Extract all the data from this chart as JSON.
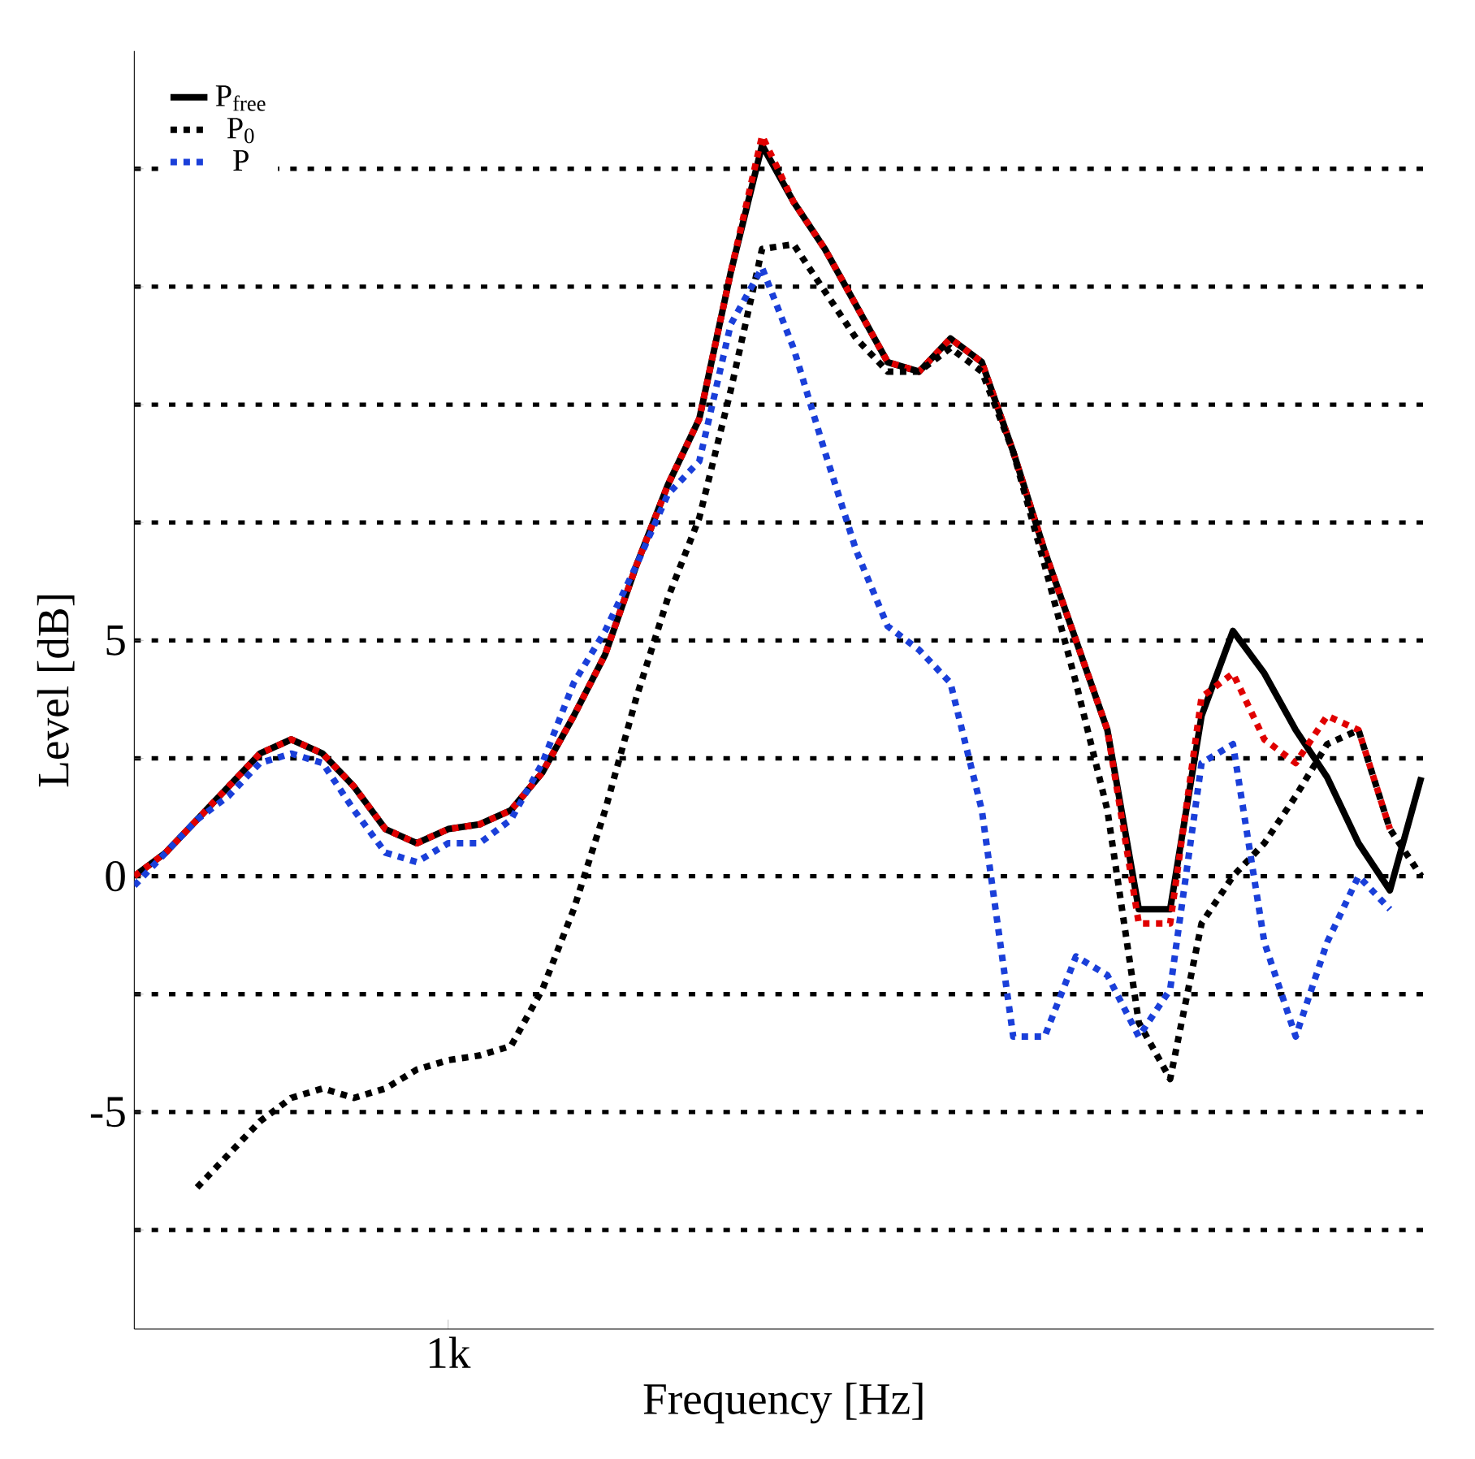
{
  "chart_data": {
    "type": "line",
    "xlabel": "Frequency [Hz]",
    "ylabel": "Level [dB]",
    "categories": [
      null,
      null,
      null,
      null,
      null,
      null,
      null,
      null,
      null,
      null,
      "1k",
      null,
      null,
      null,
      null,
      null,
      null,
      null,
      null,
      null,
      null,
      null,
      null,
      null,
      null,
      null,
      null,
      null,
      null,
      null,
      null,
      null,
      null,
      null,
      null,
      null,
      null,
      null,
      null,
      null,
      null,
      null
    ],
    "ylim": [
      -9.6,
      17.5
    ],
    "yticks": [
      {
        "value": -7.5,
        "label": null
      },
      -5,
      {
        "value": -2.5,
        "label": null
      },
      0,
      {
        "value": 2.5,
        "label": null
      },
      5,
      {
        "value": 7.5,
        "label": null
      },
      {
        "value": 10,
        "label": null
      },
      {
        "value": 12.5,
        "label": null
      },
      {
        "value": 15,
        "label": null
      }
    ],
    "grid": "y",
    "legend": "top left",
    "series": [
      {
        "name": "P$_{free}$",
        "color": "#000000",
        "line_style": "solid",
        "values": [
          0,
          0.5,
          1.2,
          1.9,
          2.6,
          2.9,
          2.6,
          1.9,
          1.0,
          0.7,
          1.0,
          1.1,
          1.4,
          2.2,
          3.4,
          4.7,
          6.6,
          8.3,
          9.7,
          12.8,
          15.5,
          14.3,
          13.3,
          12.1,
          10.9,
          10.7,
          11.4,
          10.9,
          9.0,
          6.9,
          5.0,
          3.1,
          -0.7,
          -0.7,
          3.4,
          5.2,
          4.3,
          3.1,
          2.1,
          0.7,
          -0.3,
          2.1
        ]
      },
      {
        "color": "#e00000",
        "line_style": "dashed",
        "values": [
          0,
          0.5,
          1.2,
          1.9,
          2.6,
          2.9,
          2.6,
          1.9,
          1.0,
          0.7,
          1.0,
          1.1,
          1.4,
          2.2,
          3.4,
          4.7,
          6.6,
          8.3,
          9.7,
          12.8,
          15.7,
          14.3,
          13.3,
          12.1,
          10.9,
          10.7,
          11.4,
          10.9,
          9.0,
          6.9,
          5.0,
          3.1,
          -1.0,
          -1.0,
          3.8,
          4.3,
          2.9,
          2.4,
          3.4,
          3.1,
          1.0,
          null
        ]
      },
      {
        "name": "P$_{0}$",
        "color": "#000000",
        "line_style": "dashed",
        "values": [
          null,
          null,
          -6.6,
          -5.9,
          -5.2,
          -4.7,
          -4.5,
          -4.7,
          -4.5,
          -4.1,
          -3.9,
          -3.8,
          -3.6,
          -2.4,
          -0.7,
          1.4,
          3.8,
          5.9,
          7.6,
          10.3,
          13.3,
          13.4,
          12.4,
          11.4,
          10.7,
          10.7,
          11.2,
          10.7,
          9.0,
          6.6,
          4.1,
          1.4,
          -3.1,
          -4.3,
          -1.0,
          0,
          0.7,
          1.7,
          2.8,
          3.1,
          1.0,
          0
        ]
      },
      {
        "name": "P",
        "color": "#1a3fd9",
        "line_style": "dashed",
        "values": [
          -0.2,
          0.5,
          1.2,
          1.7,
          2.4,
          2.6,
          2.4,
          1.4,
          0.5,
          0.3,
          0.7,
          0.7,
          1.2,
          2.4,
          4.1,
          5.2,
          6.6,
          8.1,
          8.8,
          11.7,
          12.9,
          11.2,
          9.0,
          6.9,
          5.3,
          4.8,
          4.1,
          1.4,
          -3.4,
          -3.4,
          -1.7,
          -2.1,
          -3.4,
          -2.4,
          2.4,
          2.8,
          -1.4,
          -3.4,
          -1.4,
          0,
          -0.7,
          null
        ]
      }
    ]
  }
}
